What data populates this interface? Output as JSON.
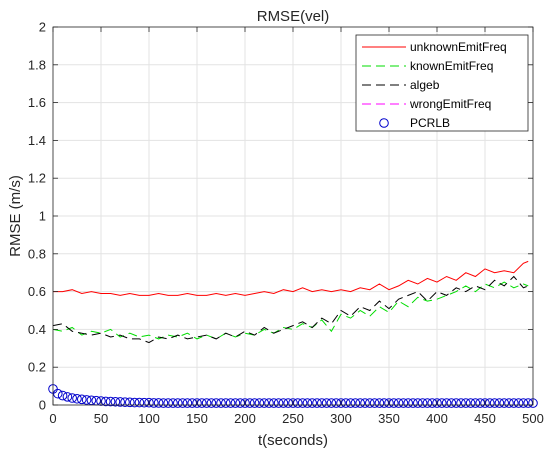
{
  "chart_data": {
    "type": "line",
    "title": "RMSE(vel)",
    "xlabel": "t(seconds)",
    "ylabel": "RMSE (m/s)",
    "xlim": [
      0,
      500
    ],
    "ylim": [
      0,
      2
    ],
    "xticks": [
      0,
      50,
      100,
      150,
      200,
      250,
      300,
      350,
      400,
      450,
      500
    ],
    "yticks": [
      0,
      0.2,
      0.4,
      0.6,
      0.8,
      1,
      1.2,
      1.4,
      1.6,
      1.8,
      2
    ],
    "xtick_labels": [
      "0",
      "50",
      "100",
      "150",
      "200",
      "250",
      "300",
      "350",
      "400",
      "450",
      "500"
    ],
    "ytick_labels": [
      "0",
      "0.2",
      "0.4",
      "0.6",
      "0.8",
      "1",
      "1.2",
      "1.4",
      "1.6",
      "1.8",
      "2"
    ],
    "grid": true,
    "legend_position": "top-right",
    "series": [
      {
        "name": "unknownEmitFreq",
        "color": "#ff0000",
        "style": "solid",
        "x": [
          0,
          10,
          20,
          30,
          40,
          50,
          60,
          70,
          80,
          90,
          100,
          110,
          120,
          130,
          140,
          150,
          160,
          170,
          180,
          190,
          200,
          210,
          220,
          230,
          240,
          250,
          260,
          270,
          280,
          290,
          300,
          310,
          320,
          330,
          340,
          350,
          360,
          370,
          380,
          390,
          400,
          410,
          420,
          430,
          440,
          450,
          460,
          470,
          480,
          490,
          495
        ],
        "y": [
          0.6,
          0.6,
          0.61,
          0.59,
          0.6,
          0.59,
          0.59,
          0.58,
          0.59,
          0.58,
          0.58,
          0.59,
          0.58,
          0.58,
          0.59,
          0.58,
          0.58,
          0.59,
          0.58,
          0.59,
          0.58,
          0.59,
          0.6,
          0.59,
          0.61,
          0.6,
          0.62,
          0.6,
          0.61,
          0.6,
          0.61,
          0.6,
          0.62,
          0.61,
          0.64,
          0.61,
          0.63,
          0.66,
          0.64,
          0.67,
          0.65,
          0.68,
          0.66,
          0.7,
          0.68,
          0.72,
          0.7,
          0.71,
          0.7,
          0.75,
          0.76
        ]
      },
      {
        "name": "knownEmitFreq",
        "color": "#00dd00",
        "style": "dashed",
        "x": [
          0,
          10,
          20,
          30,
          40,
          50,
          60,
          70,
          80,
          90,
          100,
          110,
          120,
          130,
          140,
          150,
          160,
          170,
          180,
          190,
          200,
          210,
          220,
          230,
          240,
          250,
          260,
          270,
          280,
          290,
          300,
          310,
          320,
          330,
          340,
          350,
          360,
          370,
          380,
          390,
          400,
          410,
          420,
          430,
          440,
          450,
          460,
          470,
          480,
          490,
          495
        ],
        "y": [
          0.4,
          0.39,
          0.41,
          0.37,
          0.39,
          0.38,
          0.4,
          0.36,
          0.38,
          0.36,
          0.37,
          0.35,
          0.37,
          0.36,
          0.38,
          0.35,
          0.37,
          0.35,
          0.38,
          0.36,
          0.38,
          0.37,
          0.4,
          0.38,
          0.41,
          0.4,
          0.43,
          0.41,
          0.45,
          0.39,
          0.48,
          0.46,
          0.5,
          0.47,
          0.52,
          0.49,
          0.55,
          0.52,
          0.57,
          0.55,
          0.56,
          0.58,
          0.6,
          0.63,
          0.6,
          0.64,
          0.62,
          0.65,
          0.62,
          0.64,
          0.63
        ]
      },
      {
        "name": "algeb",
        "color": "#000000",
        "style": "dashed",
        "x": [
          0,
          10,
          20,
          30,
          40,
          50,
          60,
          70,
          80,
          90,
          100,
          110,
          120,
          130,
          140,
          150,
          160,
          170,
          180,
          190,
          200,
          210,
          220,
          230,
          240,
          250,
          260,
          270,
          280,
          290,
          300,
          310,
          320,
          330,
          340,
          350,
          360,
          370,
          380,
          390,
          400,
          410,
          420,
          430,
          440,
          450,
          460,
          470,
          480,
          490,
          495
        ],
        "y": [
          0.42,
          0.43,
          0.39,
          0.38,
          0.37,
          0.38,
          0.36,
          0.37,
          0.35,
          0.35,
          0.33,
          0.36,
          0.35,
          0.37,
          0.35,
          0.36,
          0.37,
          0.35,
          0.38,
          0.36,
          0.39,
          0.37,
          0.41,
          0.38,
          0.4,
          0.42,
          0.44,
          0.41,
          0.46,
          0.43,
          0.5,
          0.47,
          0.52,
          0.5,
          0.55,
          0.51,
          0.56,
          0.58,
          0.6,
          0.55,
          0.6,
          0.58,
          0.62,
          0.6,
          0.63,
          0.61,
          0.66,
          0.63,
          0.68,
          0.62,
          0.63
        ]
      },
      {
        "name": "wrongEmitFreq",
        "color": "#ff00ff",
        "style": "dashed",
        "x": [],
        "y": []
      },
      {
        "name": "PCRLB",
        "color": "#0000cc",
        "style": "circles",
        "x": [
          0,
          5,
          10,
          15,
          20,
          25,
          30,
          35,
          40,
          45,
          50,
          55,
          60,
          65,
          70,
          75,
          80,
          85,
          90,
          95,
          100,
          105,
          110,
          115,
          120,
          125,
          130,
          135,
          140,
          145,
          150,
          155,
          160,
          165,
          170,
          175,
          180,
          185,
          190,
          195,
          200,
          205,
          210,
          215,
          220,
          225,
          230,
          235,
          240,
          245,
          250,
          255,
          260,
          265,
          270,
          275,
          280,
          285,
          290,
          295,
          300,
          305,
          310,
          315,
          320,
          325,
          330,
          335,
          340,
          345,
          350,
          355,
          360,
          365,
          370,
          375,
          380,
          385,
          390,
          395,
          400,
          405,
          410,
          415,
          420,
          425,
          430,
          435,
          440,
          445,
          450,
          455,
          460,
          465,
          470,
          475,
          480,
          485,
          490,
          495,
          500
        ],
        "y": [
          0.085,
          0.06,
          0.05,
          0.043,
          0.037,
          0.033,
          0.03,
          0.027,
          0.025,
          0.023,
          0.021,
          0.019,
          0.018,
          0.017,
          0.016,
          0.015,
          0.014,
          0.013,
          0.013,
          0.012,
          0.012,
          0.011,
          0.011,
          0.01,
          0.01,
          0.01,
          0.01,
          0.01,
          0.01,
          0.01,
          0.01,
          0.01,
          0.01,
          0.01,
          0.01,
          0.01,
          0.01,
          0.01,
          0.01,
          0.01,
          0.01,
          0.01,
          0.01,
          0.01,
          0.01,
          0.01,
          0.01,
          0.01,
          0.01,
          0.01,
          0.01,
          0.01,
          0.01,
          0.01,
          0.01,
          0.01,
          0.01,
          0.01,
          0.01,
          0.01,
          0.01,
          0.01,
          0.01,
          0.01,
          0.01,
          0.01,
          0.01,
          0.01,
          0.01,
          0.01,
          0.01,
          0.01,
          0.01,
          0.01,
          0.01,
          0.01,
          0.01,
          0.01,
          0.01,
          0.01,
          0.01,
          0.01,
          0.01,
          0.01,
          0.01,
          0.01,
          0.01,
          0.01,
          0.01,
          0.01,
          0.01,
          0.01,
          0.01,
          0.01,
          0.01,
          0.01,
          0.01,
          0.01,
          0.01,
          0.01,
          0.01
        ]
      }
    ]
  }
}
